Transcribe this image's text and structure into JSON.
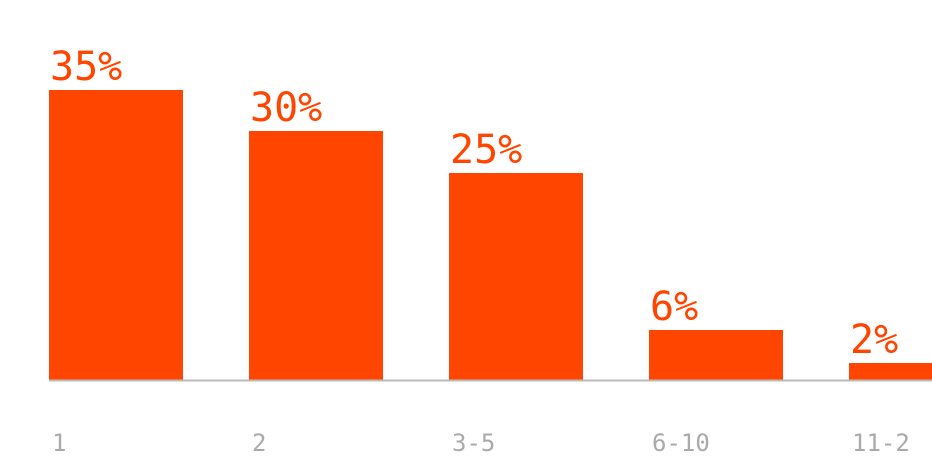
{
  "colors": {
    "bar": "#FF4500",
    "value_label": "#FF4500",
    "tick_label": "#AAAAAA",
    "baseline": "#BBBBBB",
    "background": "#FFFFFF"
  },
  "chart_data": {
    "type": "bar",
    "title": "",
    "xlabel": "",
    "ylabel": "",
    "categories": [
      "1",
      "2",
      "3-5",
      "6-10",
      "11-2"
    ],
    "values": [
      35,
      30,
      25,
      6,
      2
    ],
    "value_labels": [
      "35%",
      "30%",
      "25%",
      "6%",
      "2%"
    ],
    "ylim": [
      0,
      35
    ],
    "grid": false,
    "legend": "none"
  }
}
